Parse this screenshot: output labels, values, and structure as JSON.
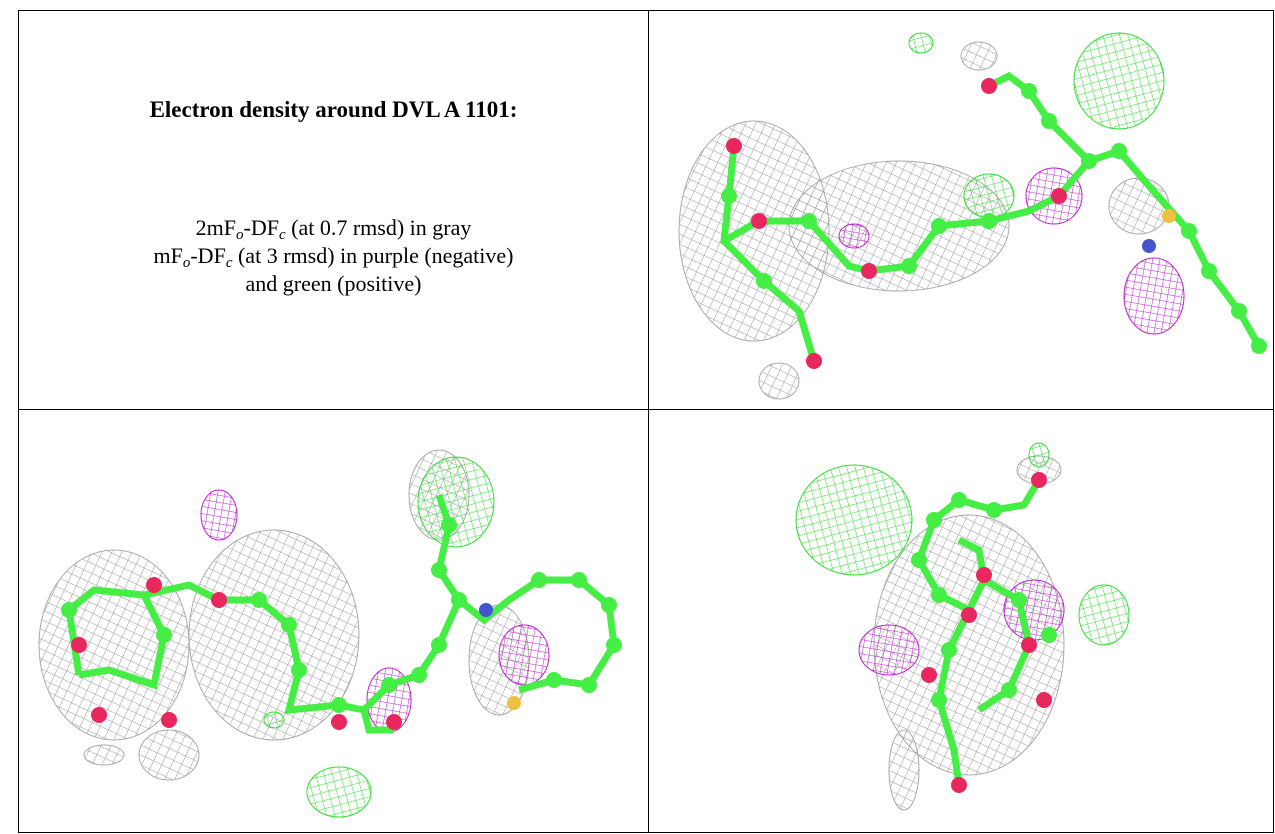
{
  "cells": {
    "title": "Electron density around DVL A 1101:",
    "legend": [
      [
        "2mF",
        "o",
        "-DF",
        "c",
        " (at 0.7 rmsd) in gray"
      ],
      [
        "mF",
        "o",
        "-DF",
        "c",
        " (at 3 rmsd) in purple (negative)"
      ],
      [
        "and green (positive)"
      ]
    ]
  }
}
